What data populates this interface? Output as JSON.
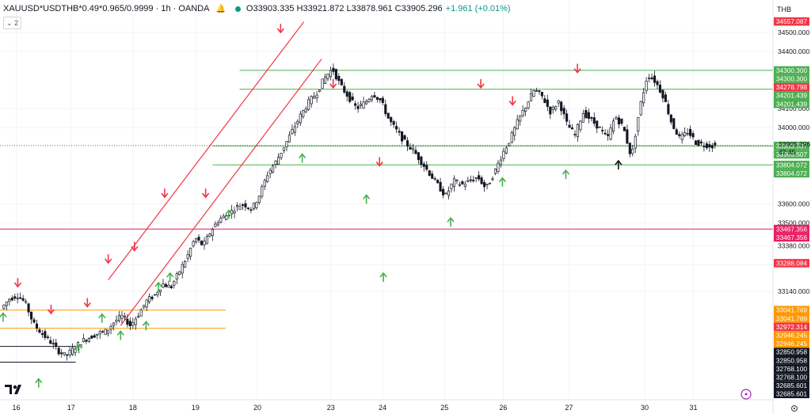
{
  "header": {
    "symbol": "XAUUSD*USDTHB*0.49*0.965/0.9999 · 1h · OANDA",
    "ohlc": "O33903.335 H33921.872 L33878.961 C33905.296",
    "change": "+1.961 (+0.01%)",
    "indicator_count": "2",
    "currency": "THB"
  },
  "colors": {
    "up": "#089981",
    "down": "#f23645",
    "green_line": "#4caf50",
    "red_line": "#f23645",
    "magenta_line": "#e91e63",
    "orange_line": "#ff9800",
    "grid": "#f0f3fa"
  },
  "chart_data": {
    "type": "candlestick",
    "y_range": [
      32600,
      34620
    ],
    "x_range": [
      0,
      100
    ],
    "x_ticks": [
      {
        "x": 2.1,
        "label": "16"
      },
      {
        "x": 9.2,
        "label": "17"
      },
      {
        "x": 17.2,
        "label": "18"
      },
      {
        "x": 25.3,
        "label": "19"
      },
      {
        "x": 33.3,
        "label": "20"
      },
      {
        "x": 42.8,
        "label": "23"
      },
      {
        "x": 49.5,
        "label": "24"
      },
      {
        "x": 57.5,
        "label": "25"
      },
      {
        "x": 65.1,
        "label": "26"
      },
      {
        "x": 73.6,
        "label": "27"
      },
      {
        "x": 83.4,
        "label": "30"
      },
      {
        "x": 89.7,
        "label": "31"
      }
    ],
    "y_ticks": [
      34500,
      34400,
      34100,
      34000,
      33600,
      33500,
      33380,
      33280,
      33140
    ],
    "y_tick_labels": [
      "34500.000",
      "34400.000",
      "34100.000",
      "34000.000",
      "33600.000",
      "33500.000",
      "33380.000",
      "33280.000",
      "33140.000"
    ],
    "last_price": {
      "value": 33905.296,
      "label": "33905.296",
      "countdown": "42:45"
    },
    "price_labels": [
      {
        "value": 34557.087,
        "label": "34557.087",
        "color": "#f23645"
      },
      {
        "value": 34300.3,
        "label": "34300.300",
        "color": "#4caf50"
      },
      {
        "value": 34300.3,
        "label": "34300.300",
        "color": "#4caf50"
      },
      {
        "value": 34278.798,
        "label": "34278.798",
        "color": "#f23645"
      },
      {
        "value": 34201.439,
        "label": "34201.439",
        "color": "#4caf50"
      },
      {
        "value": 34201.439,
        "label": "34201.439",
        "color": "#4caf50"
      },
      {
        "value": 33903.507,
        "label": "33903.507",
        "color": "#4caf50"
      },
      {
        "value": 33903.507,
        "label": "33903.507",
        "color": "#4caf50"
      },
      {
        "value": 33804.072,
        "label": "33804.072",
        "color": "#4caf50"
      },
      {
        "value": 33804.072,
        "label": "33804.072",
        "color": "#4caf50"
      },
      {
        "value": 33467.356,
        "label": "33467.356",
        "color": "#e91e63"
      },
      {
        "value": 33467.356,
        "label": "33467.356",
        "color": "#e91e63"
      },
      {
        "value": 33288.084,
        "label": "33288.084",
        "color": "#f23645"
      },
      {
        "value": 33041.769,
        "label": "33041.769",
        "color": "#ff9800"
      },
      {
        "value": 33041.769,
        "label": "33041.769",
        "color": "#ff9800"
      },
      {
        "value": 32972.314,
        "label": "32972.314",
        "color": "#f23645"
      },
      {
        "value": 32946.245,
        "label": "32946.245",
        "color": "#ff9800"
      },
      {
        "value": 32946.245,
        "label": "32946.245",
        "color": "#ff9800"
      },
      {
        "value": 32850.958,
        "label": "32850.958",
        "color": "#131722"
      },
      {
        "value": 32850.958,
        "label": "32850.958",
        "color": "#131722"
      },
      {
        "value": 32768.1,
        "label": "32768.100",
        "color": "#131722"
      },
      {
        "value": 32768.1,
        "label": "32768.100",
        "color": "#131722"
      },
      {
        "value": 32685.601,
        "label": "32685.601",
        "color": "#131722"
      },
      {
        "value": 32685.601,
        "label": "32685.601",
        "color": "#131722"
      }
    ],
    "horizontal_lines": [
      {
        "value": 34300.3,
        "x_start": 31.0,
        "color": "#4caf50"
      },
      {
        "value": 34201.439,
        "x_start": 31.0,
        "color": "#4caf50"
      },
      {
        "value": 33903.507,
        "x_start": 27.5,
        "color": "#4caf50"
      },
      {
        "value": 33804.072,
        "x_start": 27.5,
        "color": "#4caf50"
      },
      {
        "value": 33467.356,
        "x_start": 0,
        "color": "#e91e63"
      },
      {
        "value": 33041.769,
        "x_start": 0,
        "x_end": 29.2,
        "color": "#ff9800"
      },
      {
        "value": 32946.245,
        "x_start": 0,
        "x_end": 29.2,
        "color": "#ff9800"
      },
      {
        "value": 32850.958,
        "x_start": 0,
        "x_end": 9.8,
        "color": "#131722"
      },
      {
        "value": 32768.1,
        "x_start": 0,
        "x_end": 9.8,
        "color": "#131722"
      }
    ],
    "trend_lines": [
      {
        "x1": 14.0,
        "y1": 33200,
        "x2": 39.3,
        "y2": 34555,
        "color": "#f23645"
      },
      {
        "x1": 15.6,
        "y1": 32960,
        "x2": 41.6,
        "y2": 34360,
        "color": "#f23645"
      }
    ],
    "arrows_down": [
      {
        "x": 2.3,
        "y": 33185
      },
      {
        "x": 6.6,
        "y": 33045
      },
      {
        "x": 11.3,
        "y": 33080
      },
      {
        "x": 14.0,
        "y": 33310
      },
      {
        "x": 17.4,
        "y": 33375
      },
      {
        "x": 21.3,
        "y": 33655
      },
      {
        "x": 26.6,
        "y": 33655
      },
      {
        "x": 36.3,
        "y": 34520
      },
      {
        "x": 43.1,
        "y": 34230
      },
      {
        "x": 49.1,
        "y": 33820
      },
      {
        "x": 62.2,
        "y": 34230
      },
      {
        "x": 66.3,
        "y": 34140
      },
      {
        "x": 74.7,
        "y": 34310
      }
    ],
    "arrows_up": [
      {
        "x": 0.4,
        "y": 33005
      },
      {
        "x": 5.0,
        "y": 32660
      },
      {
        "x": 10.2,
        "y": 32840
      },
      {
        "x": 13.2,
        "y": 33000
      },
      {
        "x": 15.6,
        "y": 32910
      },
      {
        "x": 18.9,
        "y": 32960
      },
      {
        "x": 20.5,
        "y": 33165
      },
      {
        "x": 22.0,
        "y": 33215
      },
      {
        "x": 29.6,
        "y": 33545
      },
      {
        "x": 39.1,
        "y": 33840
      },
      {
        "x": 47.4,
        "y": 33625
      },
      {
        "x": 49.6,
        "y": 33215
      },
      {
        "x": 58.3,
        "y": 33505
      },
      {
        "x": 65.0,
        "y": 33715
      },
      {
        "x": 73.2,
        "y": 33755
      }
    ],
    "arrow_black_up": {
      "x": 80.0,
      "y": 33805
    },
    "series": [
      {
        "name": "price",
        "values": [
          33050,
          33100,
          33120,
          33080,
          32970,
          32920,
          32880,
          32830,
          32800,
          32840,
          32880,
          32900,
          32920,
          32930,
          32980,
          33010,
          32960,
          33020,
          33090,
          33120,
          33180,
          33160,
          33240,
          33320,
          33420,
          33380,
          33460,
          33520,
          33540,
          33580,
          33600,
          33570,
          33650,
          33760,
          33820,
          33900,
          33980,
          34060,
          34130,
          34180,
          34260,
          34310,
          34220,
          34160,
          34100,
          34130,
          34180,
          34140,
          34040,
          33980,
          33920,
          33880,
          33820,
          33760,
          33700,
          33640,
          33720,
          33700,
          33720,
          33740,
          33680,
          33760,
          33860,
          33940,
          34040,
          34120,
          34200,
          34160,
          34080,
          34140,
          34020,
          33960,
          34080,
          34040,
          34000,
          33940,
          34060,
          34000,
          33840,
          34100,
          34280,
          34240,
          34160,
          34020,
          33940,
          33980,
          33920,
          33910,
          33905
        ]
      }
    ]
  }
}
